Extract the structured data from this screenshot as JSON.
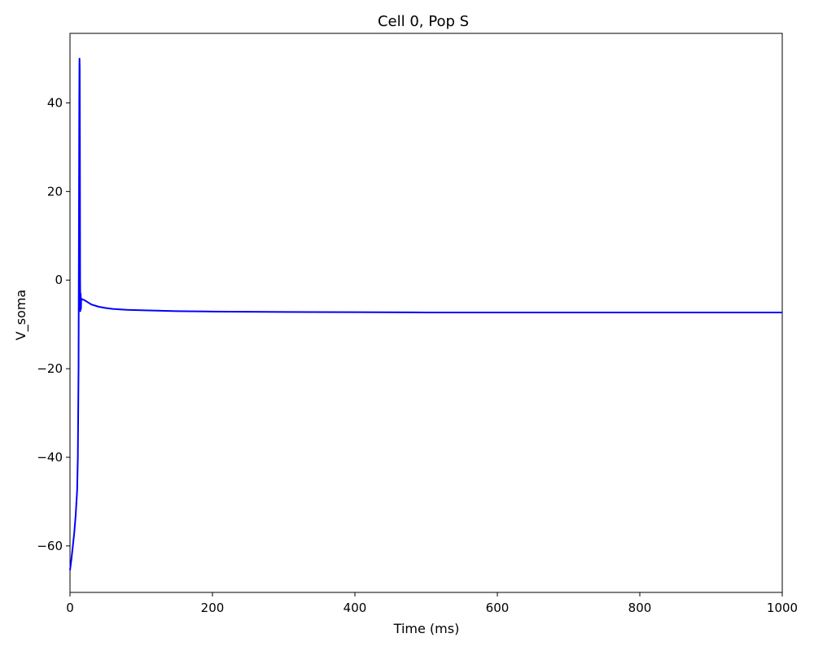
{
  "chart_data": {
    "type": "line",
    "title": "Cell 0, Pop S",
    "xlabel": "Time (ms)",
    "ylabel": "V_soma",
    "xlim": [
      0,
      1000
    ],
    "ylim": [
      -70.5,
      55.7
    ],
    "xticks": [
      0,
      200,
      400,
      600,
      800,
      1000
    ],
    "xtick_labels": [
      "0",
      "200",
      "400",
      "600",
      "800",
      "1000"
    ],
    "yticks": [
      -60,
      -40,
      -20,
      0,
      20,
      40
    ],
    "ytick_labels": [
      "−60",
      "−40",
      "−20",
      "0",
      "20",
      "40"
    ],
    "grid": false,
    "legend": "none",
    "series": [
      {
        "color": "#0000ff",
        "x": [
          0,
          2,
          4,
          6,
          8,
          10,
          11,
          12,
          12.5,
          13,
          13.3,
          13.6,
          13.9,
          14.2,
          14.5,
          14.8,
          15.1,
          15.4,
          15.7,
          16.0,
          16.5,
          17,
          18,
          20,
          25,
          30,
          40,
          50,
          60,
          80,
          100,
          150,
          200,
          300,
          400,
          500,
          600,
          700,
          800,
          900,
          1000
        ],
        "y": [
          -65.5,
          -63,
          -60,
          -57,
          -53,
          -47.5,
          -40,
          -20,
          10,
          40,
          50,
          48,
          30,
          0,
          -7,
          -3,
          -3.5,
          -6.5,
          -4.5,
          -4.2,
          -4.3,
          -4.3,
          -4.4,
          -4.5,
          -5.0,
          -5.5,
          -6.0,
          -6.3,
          -6.5,
          -6.7,
          -6.8,
          -7.0,
          -7.1,
          -7.2,
          -7.25,
          -7.3,
          -7.3,
          -7.3,
          -7.3,
          -7.3,
          -7.3
        ]
      }
    ]
  }
}
